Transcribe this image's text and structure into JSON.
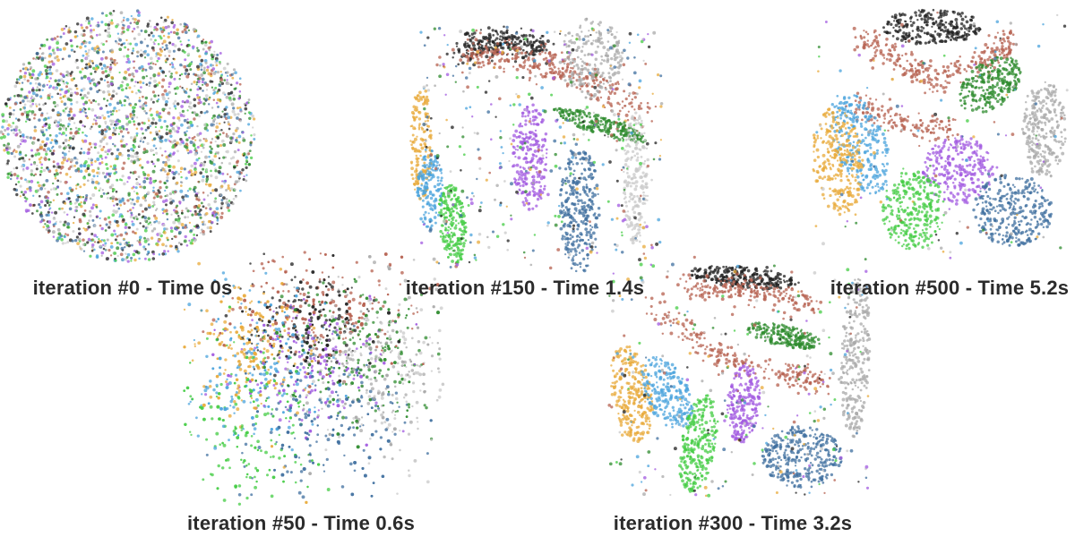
{
  "colors": {
    "0": "#222222",
    "1": "#b5604f",
    "2": "#2e8b2e",
    "3": "#a9a9a9",
    "4": "#e8a93a",
    "5": "#4aa3dc",
    "6": "#a259e0",
    "7": "#3f6f9f",
    "8": "#44cc44",
    "9": "#c9c9c9"
  },
  "chart_data": [
    {
      "type": "scatter",
      "title": "iteration #0 - Time 0s",
      "iteration": 0,
      "time_s": 0,
      "layout": "random-disk",
      "classes": [
        "0",
        "1",
        "2",
        "3",
        "4",
        "5",
        "6",
        "7",
        "8",
        "9"
      ]
    },
    {
      "type": "scatter",
      "title": "iteration #50 - Time 0.6s",
      "iteration": 50,
      "time_s": 0.6,
      "layout": "diffuse-blob",
      "classes": [
        "0",
        "1",
        "2",
        "3",
        "4",
        "5",
        "6",
        "7",
        "8",
        "9"
      ]
    },
    {
      "type": "scatter",
      "title": "iteration #150 - Time 1.4s",
      "iteration": 150,
      "time_s": 1.4,
      "layout": "partially-separated-clusters",
      "classes": [
        "0",
        "1",
        "2",
        "3",
        "4",
        "5",
        "6",
        "7",
        "8",
        "9"
      ]
    },
    {
      "type": "scatter",
      "title": "iteration #300 - Time 3.2s",
      "iteration": 300,
      "time_s": 3.2,
      "layout": "separated-clusters",
      "classes": [
        "0",
        "1",
        "2",
        "3",
        "4",
        "5",
        "6",
        "7",
        "8",
        "9"
      ]
    },
    {
      "type": "scatter",
      "title": "iteration #500 - Time 5.2s",
      "iteration": 500,
      "time_s": 5.2,
      "layout": "well-separated-clusters",
      "classes": [
        "0",
        "1",
        "2",
        "3",
        "4",
        "5",
        "6",
        "7",
        "8",
        "9"
      ]
    }
  ],
  "captions": {
    "iter0": "iteration #0 - Time 0s",
    "iter50": "iteration #50 - Time 0.6s",
    "iter150": "iteration #150 - Time 1.4s",
    "iter300": "iteration #300 - Time 3.2s",
    "iter500": "iteration #500 - Time 5.2s"
  }
}
